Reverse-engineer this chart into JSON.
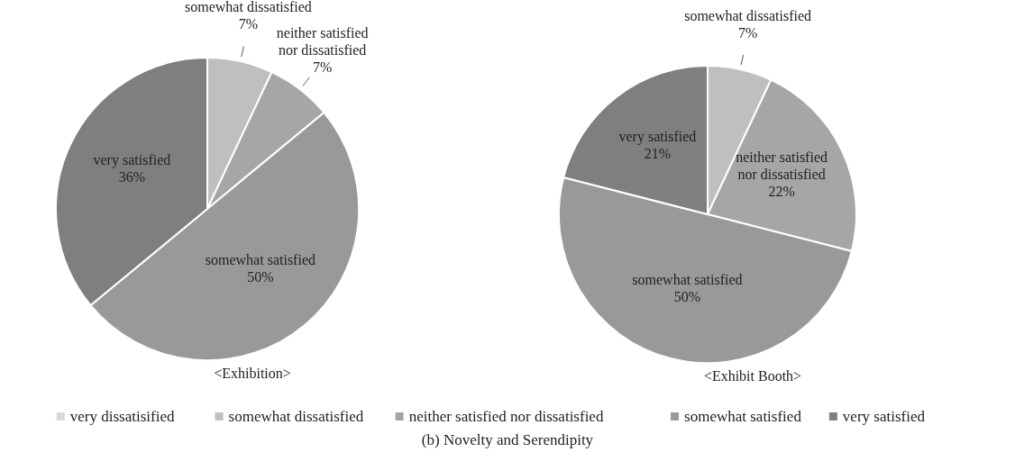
{
  "chart_data": [
    {
      "type": "pie",
      "title": "<Exhibition>",
      "categories": [
        "very dissatisified",
        "somewhat dissatisfied",
        "neither satisfied nor dissatisfied",
        "somewhat satisfied",
        "very satisfied"
      ],
      "values": [
        0,
        7,
        7,
        50,
        36
      ],
      "colors": [
        "#d9d9d9",
        "#bfbfbf",
        "#a6a6a6",
        "#999999",
        "#7f7f7f"
      ],
      "value_labels": [
        null,
        "7%",
        "7%",
        "50%",
        "36%"
      ],
      "legend": "bottom",
      "annotations": [
        "(b) Novelty and Serendipity"
      ]
    },
    {
      "type": "pie",
      "title": "<Exhibit Booth>",
      "categories": [
        null,
        "somewhat dissatisfied",
        "neither satisfied nor dissatisfied",
        "somewhat satisfied",
        "very satisfied"
      ],
      "values": [
        0,
        7,
        22,
        50,
        21
      ],
      "colors": [
        "#d9d9d9",
        "#bfbfbf",
        "#a6a6a6",
        "#999999",
        "#7f7f7f"
      ],
      "value_labels": [
        null,
        "7%",
        "22%",
        "50%",
        "21%"
      ]
    }
  ]
}
